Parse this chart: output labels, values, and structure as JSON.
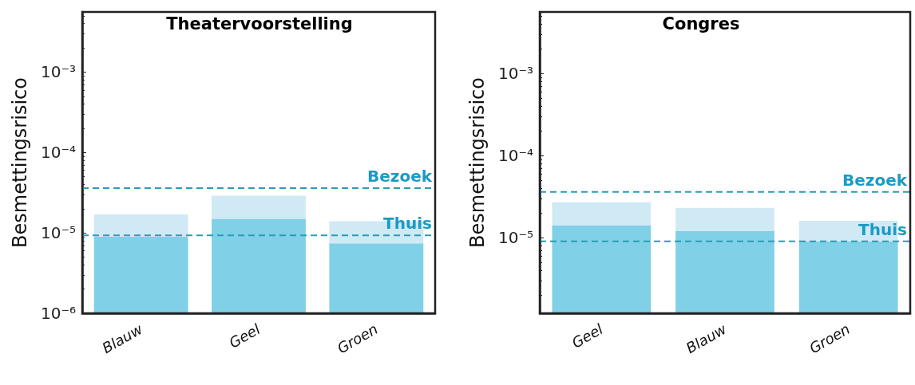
{
  "chart_data": [
    {
      "type": "bar",
      "title": "Theatervoorstelling",
      "ylabel": "Besmettingsrisico",
      "categories": [
        "Blauw",
        "Geel",
        "Groen"
      ],
      "series": [
        {
          "color": "#80d0e8",
          "values": [
            9e-06,
            1.5e-05,
            7.4e-06
          ]
        },
        {
          "color": "#cfe9f5",
          "values": [
            8e-06,
            1.4e-05,
            6.6e-06
          ]
        }
      ],
      "stacked": true,
      "log": "y",
      "ylim": [
        1e-06,
        0.0056
      ],
      "yticks": [
        {
          "value": 1e-06,
          "label": "10⁻⁶"
        },
        {
          "value": 1e-05,
          "label": "10⁻⁵"
        },
        {
          "value": 0.0001,
          "label": "10⁻⁴"
        },
        {
          "value": 0.001,
          "label": "10⁻³"
        }
      ],
      "ref_lines": [
        {
          "axis": "y",
          "value": 3.6e-05,
          "label": "Bezoek",
          "color": "#2a9db5",
          "line_style": "dashed"
        },
        {
          "axis": "y",
          "value": 9.3e-06,
          "label": "Thuis",
          "color": "#2a9db5",
          "line_style": "dashed"
        }
      ],
      "grid": false
    },
    {
      "type": "bar",
      "title": "Congres",
      "ylabel": "Besmettingsrisico",
      "categories": [
        "Geel",
        "Blauw",
        "Groen"
      ],
      "series": [
        {
          "color": "#80d0e8",
          "values": [
            1.4e-05,
            1.2e-05,
            9e-06
          ]
        },
        {
          "color": "#cfe9f5",
          "values": [
            1.3e-05,
            1.1e-05,
            7e-06
          ]
        }
      ],
      "stacked": true,
      "log": "y",
      "ylim": [
        1.2e-06,
        0.0056
      ],
      "yticks": [
        {
          "value": 1e-05,
          "label": "10⁻⁵"
        },
        {
          "value": 0.0001,
          "label": "10⁻⁴"
        },
        {
          "value": 0.001,
          "label": "10⁻³"
        }
      ],
      "ref_lines": [
        {
          "axis": "y",
          "value": 3.6e-05,
          "label": "Bezoek",
          "color": "#2a9db5",
          "line_style": "dashed"
        },
        {
          "axis": "y",
          "value": 9e-06,
          "label": "Thuis",
          "color": "#2a9db5",
          "line_style": "dashed"
        }
      ],
      "grid": false
    }
  ]
}
